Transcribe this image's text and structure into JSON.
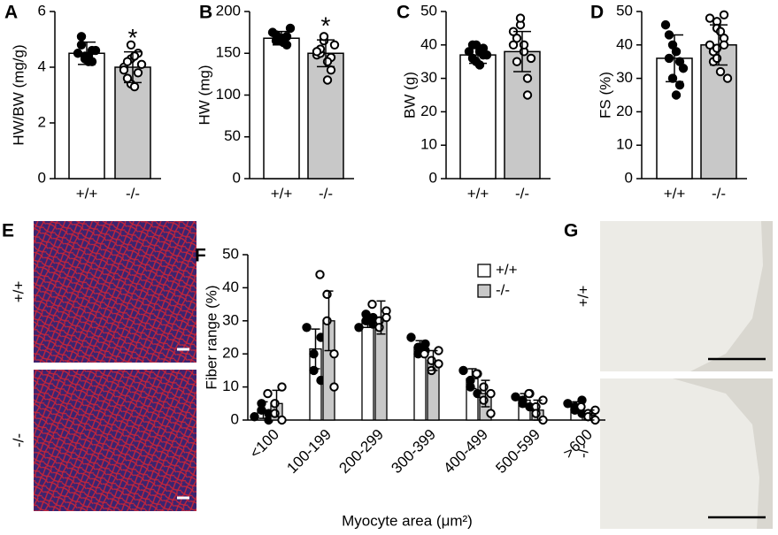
{
  "chart_data": [
    {
      "type": "bar",
      "panel": "A",
      "ylabel": "HW/BW (mg/g)",
      "categories": [
        "+/+",
        "-/-"
      ],
      "values": [
        4.5,
        4.0
      ],
      "errors": [
        0.4,
        0.55
      ],
      "colors": [
        "#ffffff",
        "#c8c8c8"
      ],
      "markers": [
        "filled",
        "open"
      ],
      "points": [
        [
          4.5,
          4.3,
          4.4,
          4.6,
          4.2,
          4.8,
          5.1,
          4.4,
          4.2,
          4.6
        ],
        [
          4.0,
          3.4,
          4.3,
          4.5,
          3.8,
          3.6,
          4.2,
          3.3,
          4.4,
          4.1,
          3.9,
          4.8
        ]
      ],
      "annotation": "*",
      "ylim": [
        0,
        6
      ],
      "yticks": [
        0,
        2,
        4,
        6
      ]
    },
    {
      "type": "bar",
      "panel": "B",
      "ylabel": "HW (mg)",
      "categories": [
        "+/+",
        "-/-"
      ],
      "values": [
        168,
        150
      ],
      "errors": [
        8,
        16
      ],
      "colors": [
        "#ffffff",
        "#c8c8c8"
      ],
      "markers": [
        "filled",
        "open"
      ],
      "points": [
        [
          175,
          168,
          165,
          170,
          160,
          172,
          165,
          163,
          168,
          180
        ],
        [
          148,
          165,
          170,
          145,
          130,
          150,
          155,
          140,
          118,
          160,
          152
        ]
      ],
      "annotation": "*",
      "ylim": [
        0,
        200
      ],
      "yticks": [
        0,
        50,
        100,
        150,
        200
      ]
    },
    {
      "type": "bar",
      "panel": "C",
      "ylabel": "BW (g)",
      "categories": [
        "+/+",
        "-/-"
      ],
      "values": [
        37,
        38
      ],
      "errors": [
        2.5,
        6
      ],
      "colors": [
        "#ffffff",
        "#c8c8c8"
      ],
      "markers": [
        "filled",
        "open"
      ],
      "points": [
        [
          38,
          40,
          35,
          37,
          39,
          36,
          40,
          34,
          38,
          37
        ],
        [
          40,
          46,
          48,
          30,
          25,
          35,
          42,
          38,
          40,
          36,
          44
        ]
      ],
      "ylim": [
        0,
        50
      ],
      "yticks": [
        0,
        10,
        20,
        30,
        40,
        50
      ]
    },
    {
      "type": "bar",
      "panel": "D",
      "ylabel": "FS (%)",
      "categories": [
        "+/+",
        "-/-"
      ],
      "values": [
        36,
        40
      ],
      "errors": [
        7,
        6
      ],
      "colors": [
        "#ffffff",
        "#c8c8c8"
      ],
      "markers": [
        "filled",
        "open"
      ],
      "points": [
        [
          46,
          40,
          30,
          28,
          35,
          43,
          36,
          38,
          25,
          33
        ],
        [
          48,
          47,
          45,
          42,
          40,
          38,
          35,
          32,
          44,
          30,
          40,
          36,
          39,
          49
        ]
      ],
      "ylim": [
        0,
        50
      ],
      "yticks": [
        0,
        10,
        20,
        30,
        40,
        50
      ]
    },
    {
      "type": "grouped_bar",
      "panel": "F",
      "ylabel": "Fiber range (%)",
      "xlabel": "Myocyte area (μm²)",
      "categories": [
        "<100",
        "100-199",
        "200-299",
        "300-399",
        "400-499",
        "500-599",
        ">600"
      ],
      "series": [
        {
          "name": "+/+",
          "color": "#ffffff",
          "marker": "filled",
          "values": [
            3,
            21.5,
            30,
            22,
            12.5,
            6,
            4
          ],
          "errors": [
            2.5,
            6,
            2,
            2,
            3,
            2,
            1.5
          ],
          "points": [
            [
              1,
              3,
              5,
              2,
              0
            ],
            [
              28,
              20,
              15,
              12,
              25
            ],
            [
              28,
              32,
              30,
              31,
              29
            ],
            [
              25,
              22,
              20,
              21,
              23
            ],
            [
              15,
              12,
              10,
              14,
              8
            ],
            [
              7,
              6,
              5,
              8,
              4
            ],
            [
              5,
              3,
              4,
              6,
              2
            ]
          ]
        },
        {
          "name": "-/-",
          "color": "#c8c8c8",
          "marker": "open",
          "values": [
            5,
            30,
            31,
            18,
            8,
            3,
            1.5
          ],
          "errors": [
            4,
            9,
            5,
            3,
            4,
            3,
            1.5
          ],
          "points": [
            [
              8,
              5,
              2,
              0,
              10
            ],
            [
              44,
              38,
              30,
              10,
              20
            ],
            [
              35,
              30,
              28,
              33,
              31
            ],
            [
              20,
              18,
              15,
              17,
              21
            ],
            [
              14,
              10,
              6,
              8,
              2
            ],
            [
              8,
              4,
              2,
              0,
              6
            ],
            [
              4,
              2,
              1,
              0,
              3
            ]
          ]
        }
      ],
      "ylim": [
        0,
        50
      ],
      "yticks": [
        0,
        10,
        20,
        30,
        40,
        50
      ]
    }
  ],
  "images": [
    {
      "panel": "E",
      "labels": [
        "+/+",
        "-/-"
      ]
    },
    {
      "panel": "G",
      "labels": [
        "+/+",
        "-/-"
      ]
    }
  ]
}
